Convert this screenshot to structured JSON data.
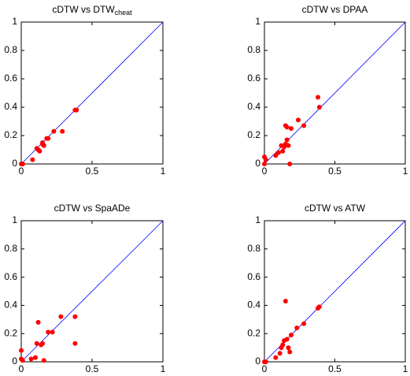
{
  "chart_data": [
    {
      "type": "scatter",
      "title": "cDTW vs DTW",
      "title_subscript": "cheat",
      "color": "#ff0000",
      "diagonal_color": "#0000ff",
      "xlim": [
        0,
        1
      ],
      "ylim": [
        0,
        1
      ],
      "xticks": [
        0,
        0.5,
        1
      ],
      "yticks": [
        0,
        0.2,
        0.4,
        0.6,
        0.8,
        1
      ],
      "x": [
        0,
        0.01,
        0.08,
        0.11,
        0.12,
        0.13,
        0.15,
        0.15,
        0.16,
        0.18,
        0.19,
        0.23,
        0.29,
        0.38,
        0.39
      ],
      "values": [
        0,
        0,
        0.03,
        0.11,
        0.1,
        0.09,
        0.14,
        0.15,
        0.13,
        0.18,
        0.18,
        0.23,
        0.23,
        0.38,
        0.38
      ]
    },
    {
      "type": "scatter",
      "title": "cDTW vs DPAA",
      "color": "#ff0000",
      "diagonal_color": "#0000ff",
      "xlim": [
        0,
        1
      ],
      "ylim": [
        0,
        1
      ],
      "xticks": [
        0,
        0.5,
        1
      ],
      "yticks": [
        0,
        0.2,
        0.4,
        0.6,
        0.8,
        1
      ],
      "x": [
        0,
        0.01,
        0,
        0.08,
        0.1,
        0.12,
        0.13,
        0.14,
        0.15,
        0.16,
        0.17,
        0.16,
        0.19,
        0.18,
        0.24,
        0.28,
        0.38,
        0.39,
        0.15
      ],
      "values": [
        0.05,
        0.03,
        0,
        0.06,
        0.08,
        0.13,
        0.09,
        0.12,
        0.27,
        0.26,
        0.13,
        0.17,
        0.25,
        0,
        0.31,
        0.27,
        0.47,
        0.4,
        0.14
      ]
    },
    {
      "type": "scatter",
      "title": "cDTW vs SpaADe",
      "color": "#ff0000",
      "diagonal_color": "#0000ff",
      "xlim": [
        0,
        1
      ],
      "ylim": [
        0,
        1
      ],
      "xticks": [
        0,
        0.5,
        1
      ],
      "yticks": [
        0,
        0.2,
        0.4,
        0.6,
        0.8,
        1
      ],
      "x": [
        0,
        0,
        0.01,
        0.07,
        0.1,
        0.11,
        0.12,
        0.14,
        0.15,
        0.16,
        0.19,
        0.22,
        0.28,
        0.38,
        0.38
      ],
      "values": [
        0.08,
        0.02,
        0.01,
        0.02,
        0.03,
        0.13,
        0.28,
        0.12,
        0.13,
        0.01,
        0.21,
        0.21,
        0.32,
        0.32,
        0.13
      ]
    },
    {
      "type": "scatter",
      "title": "cDTW vs ATW",
      "color": "#ff0000",
      "diagonal_color": "#0000ff",
      "xlim": [
        0,
        1
      ],
      "ylim": [
        0,
        1
      ],
      "xticks": [
        0,
        0.5,
        1
      ],
      "yticks": [
        0,
        0.2,
        0.4,
        0.6,
        0.8,
        1
      ],
      "x": [
        0,
        0.01,
        0.08,
        0.11,
        0.12,
        0.13,
        0.14,
        0.15,
        0.16,
        0.17,
        0.18,
        0.19,
        0.23,
        0.28,
        0.38,
        0.39
      ],
      "values": [
        0,
        0,
        0.03,
        0.06,
        0.1,
        0.12,
        0.15,
        0.43,
        0.16,
        0.1,
        0.07,
        0.19,
        0.24,
        0.27,
        0.38,
        0.39
      ]
    }
  ]
}
